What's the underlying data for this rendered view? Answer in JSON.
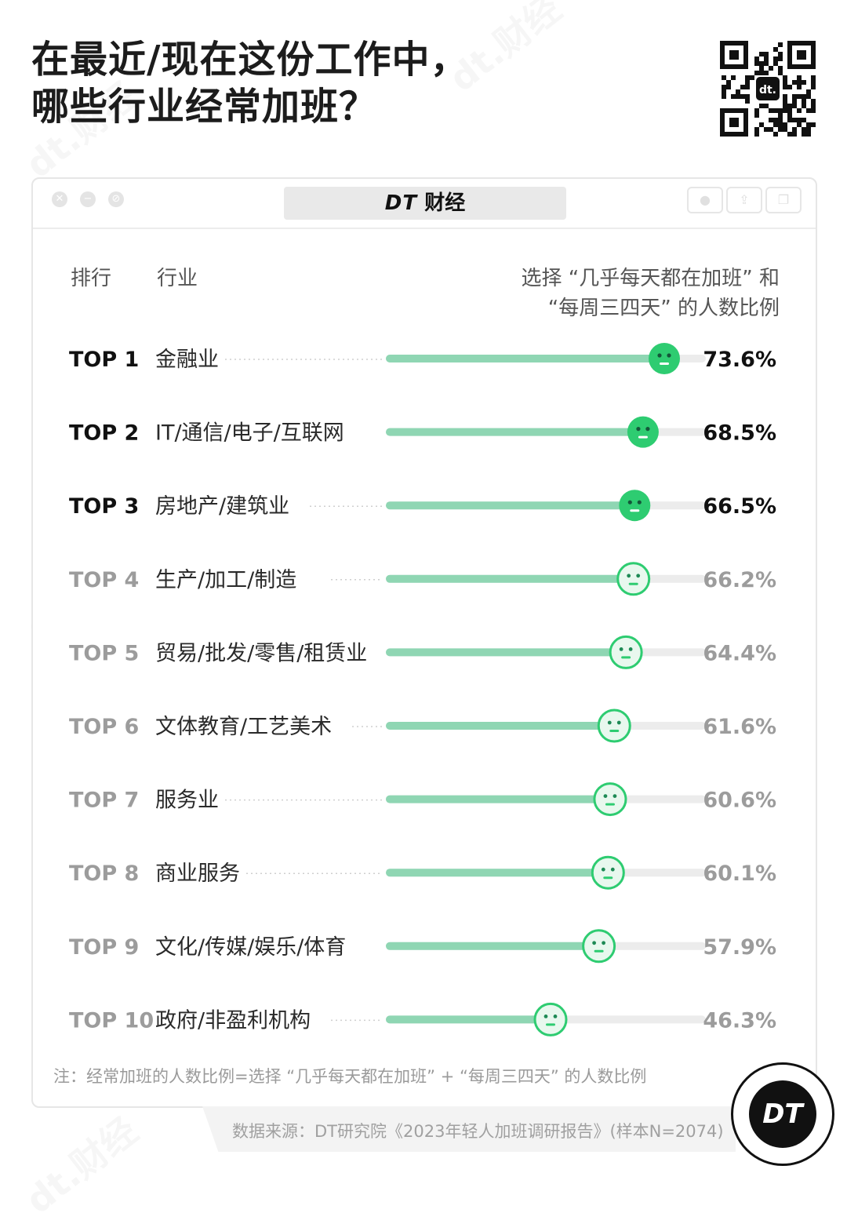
{
  "title_line1": "在最近/现在这份工作中，",
  "title_line2": "哪些行业经常加班？",
  "brand": {
    "dt": "DT",
    "name": "财经"
  },
  "qr_logo": "dt.",
  "headers": {
    "rank": "排行",
    "industry": "行业",
    "value_line1": "选择 “几乎每天都在加班” 和",
    "value_line2": "“每周三四天” 的人数比例"
  },
  "footnote": "注：经常加班的人数比例=选择 “几乎每天都在加班” + “每周三四天” 的人数比例",
  "source": "数据来源：DT研究院《2023年轻人加班调研报告》(样本N=2074)",
  "badge_text": "DT",
  "watermark": "dt.财经",
  "icons": {
    "window_controls": [
      "close-icon",
      "minimize-icon",
      "maximize-icon"
    ],
    "face": "face-icon",
    "toolbar": [
      "record-icon",
      "share-icon",
      "copy-icon"
    ]
  },
  "colors": {
    "accent": "#2ECC71",
    "bar": "#8FD6B3",
    "track": "#ECECEC",
    "face_light": "#E8F8EE"
  },
  "chart_data": {
    "type": "bar",
    "orientation": "horizontal",
    "title": "在最近/现在这份工作中，哪些行业经常加班？",
    "ylabel": "行业",
    "xlabel": "选择 “几乎每天都在加班” 和 “每周三四天” 的人数比例",
    "xlim": [
      0,
      100
    ],
    "unit": "%",
    "ranks": [
      "TOP 1",
      "TOP 2",
      "TOP 3",
      "TOP 4",
      "TOP 5",
      "TOP 6",
      "TOP 7",
      "TOP 8",
      "TOP 9",
      "TOP 10"
    ],
    "categories": [
      "金融业",
      "IT/通信/电子/互联网",
      "房地产/建筑业",
      "生产/加工/制造",
      "贸易/批发/零售/租赁业",
      "文体教育/工艺美术",
      "服务业",
      "商业服务",
      "文化/传媒/娱乐/体育",
      "政府/非盈利机构"
    ],
    "values": [
      73.6,
      68.5,
      66.5,
      66.2,
      64.4,
      61.6,
      60.6,
      60.1,
      57.9,
      46.3
    ],
    "labels": [
      "73.6%",
      "68.5%",
      "66.5%",
      "66.2%",
      "64.4%",
      "61.6%",
      "60.6%",
      "60.1%",
      "57.9%",
      "46.3%"
    ],
    "highlighted_count": 3
  }
}
